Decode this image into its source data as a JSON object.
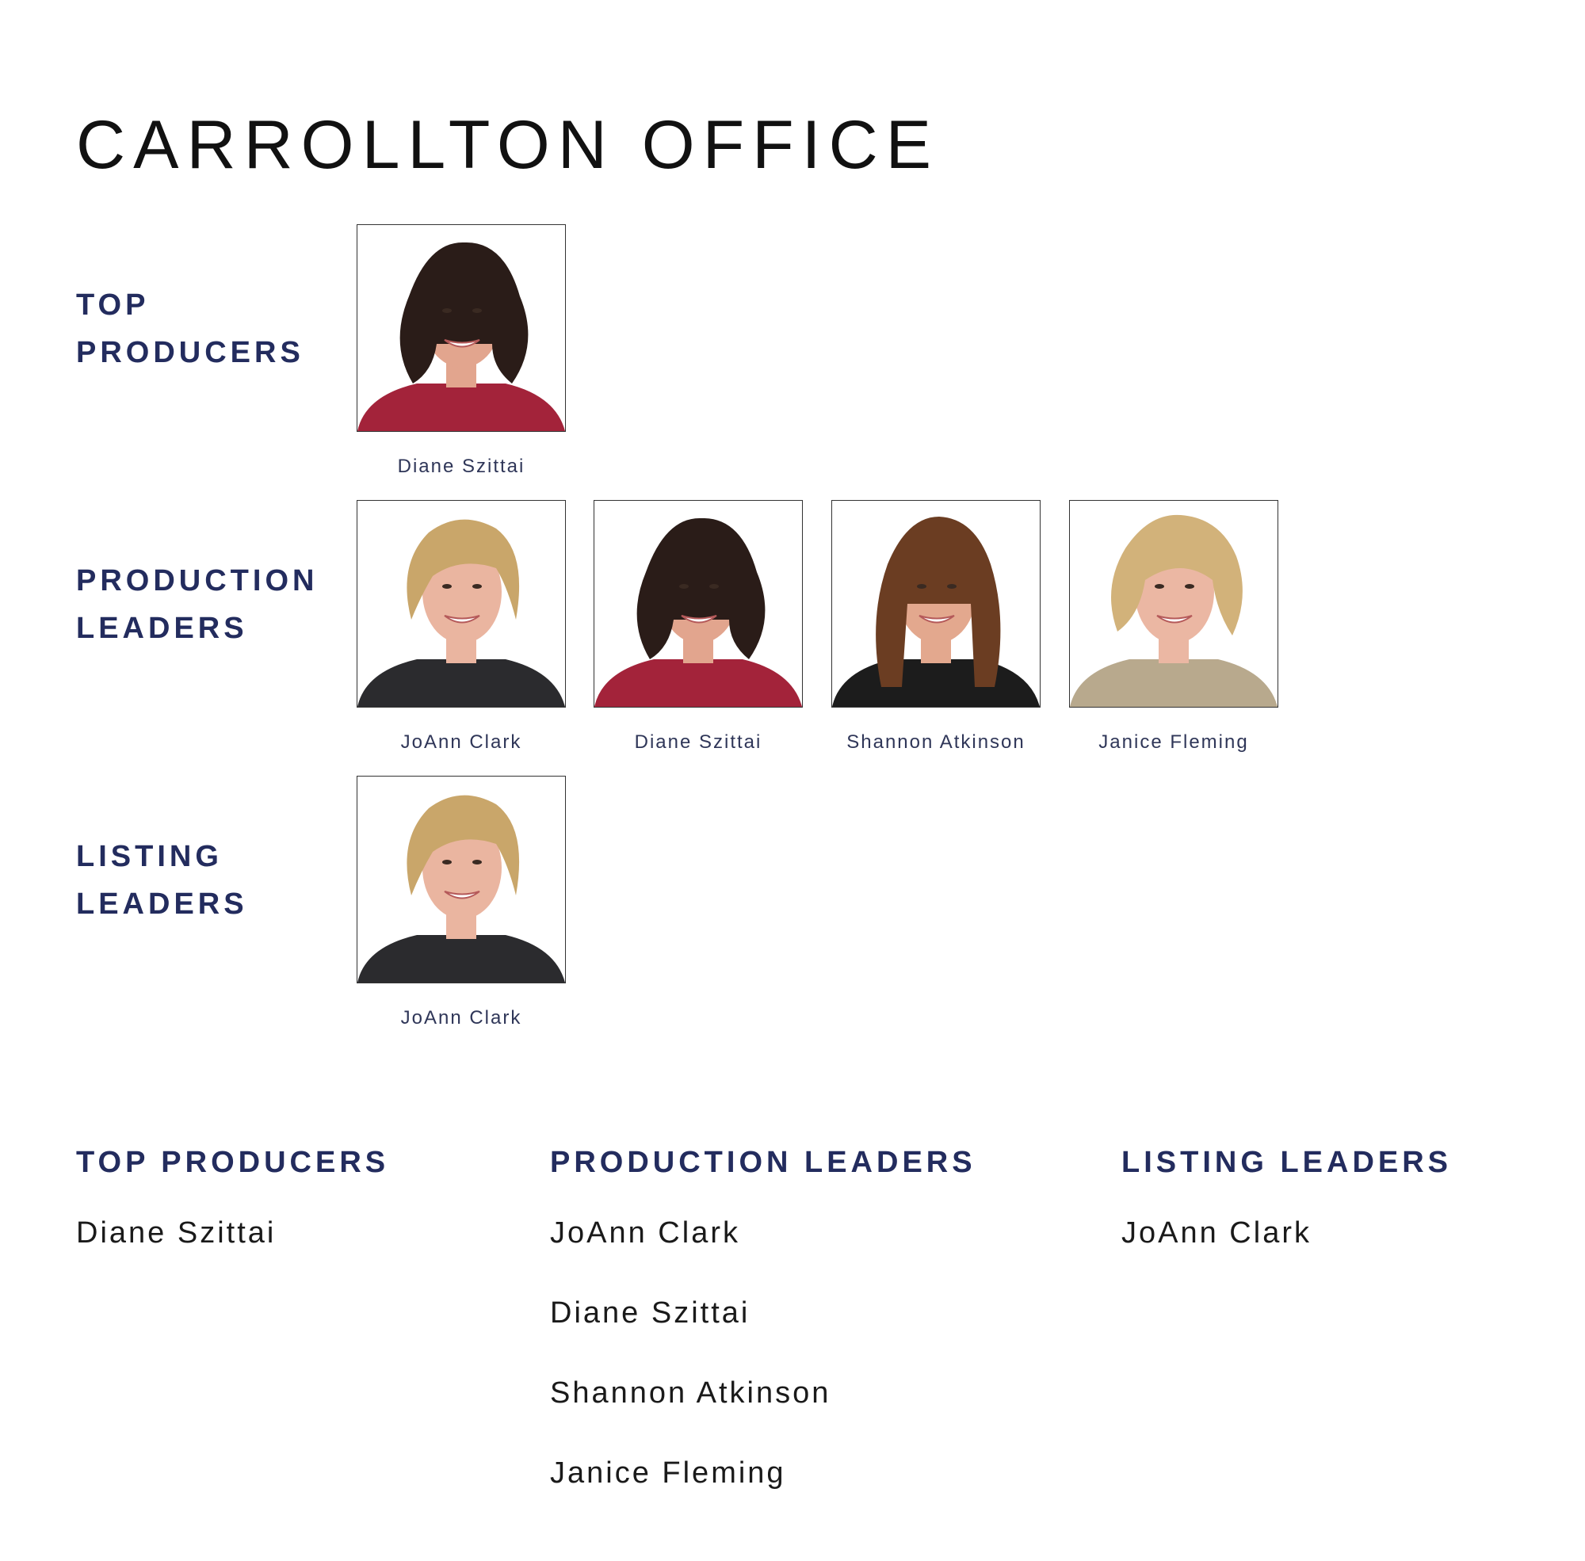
{
  "page": {
    "title": "CARROLLTON OFFICE"
  },
  "colors": {
    "accent": "#232c5e",
    "text": "#1a1a1a"
  },
  "sections": [
    {
      "label_line1": "TOP",
      "label_line2": "PRODUCERS",
      "people": [
        {
          "name": "Diane Szittai",
          "hair": "#2a1c18",
          "skin": "#e2a58e",
          "clothing": "#a3233a",
          "style": "dark-bob"
        }
      ]
    },
    {
      "label_line1": "PRODUCTION",
      "label_line2": "LEADERS",
      "people": [
        {
          "name": "JoAnn Clark",
          "hair": "#c9a66a",
          "skin": "#eab5a0",
          "clothing": "#2b2b2e",
          "style": "blonde-short"
        },
        {
          "name": "Diane Szittai",
          "hair": "#2a1c18",
          "skin": "#e2a58e",
          "clothing": "#a3233a",
          "style": "dark-bob"
        },
        {
          "name": "Shannon Atkinson",
          "hair": "#6b3d22",
          "skin": "#e3a88e",
          "clothing": "#1c1c1c",
          "style": "brown-long"
        },
        {
          "name": "Janice Fleming",
          "hair": "#d2b27a",
          "skin": "#ebb7a3",
          "clothing": "#b8a98d",
          "style": "blonde-curly"
        }
      ]
    },
    {
      "label_line1": "LISTING",
      "label_line2": "LEADERS",
      "people": [
        {
          "name": "JoAnn Clark",
          "hair": "#c9a66a",
          "skin": "#eab5a0",
          "clothing": "#2b2b2e",
          "style": "blonde-short"
        }
      ]
    }
  ],
  "summary": [
    {
      "heading": "TOP PRODUCERS",
      "names": [
        "Diane Szittai"
      ]
    },
    {
      "heading": "PRODUCTION LEADERS",
      "names": [
        "JoAnn Clark",
        "Diane Szittai",
        "Shannon Atkinson",
        "Janice Fleming"
      ]
    },
    {
      "heading": "LISTING LEADERS",
      "names": [
        "JoAnn Clark"
      ]
    }
  ]
}
